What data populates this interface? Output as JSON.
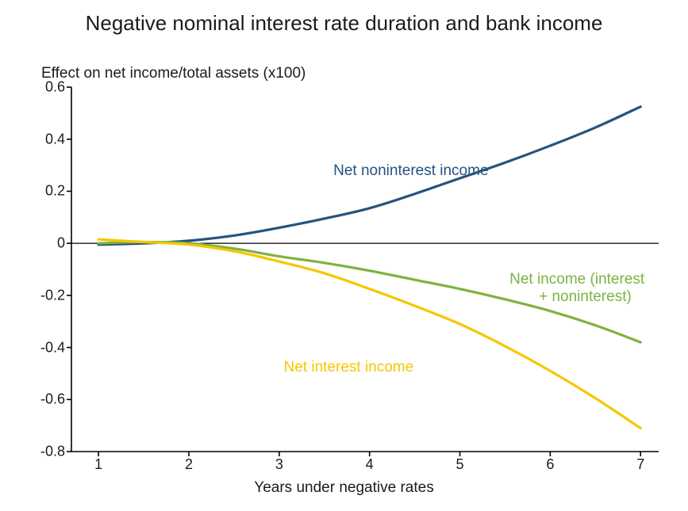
{
  "chart": {
    "type": "line",
    "title": "Negative nominal interest rate duration and bank income",
    "ylabel": "Effect on net income/total assets (x100)",
    "xlabel": "Years under negative rates",
    "background_color": "#ffffff",
    "title_fontsize": 26,
    "label_fontsize": 19,
    "tick_fontsize": 18,
    "xlim": [
      0.7,
      7.2
    ],
    "ylim": [
      -0.8,
      0.6
    ],
    "yticks": [
      0.6,
      0.4,
      0.2,
      0,
      -0.2,
      -0.4,
      -0.6,
      -0.8
    ],
    "ytick_labels": [
      "0.6",
      "0.4",
      "0.2",
      "0",
      "-0.2",
      "-0.4",
      "-0.6",
      "-0.8"
    ],
    "xticks": [
      1,
      2,
      3,
      4,
      5,
      6,
      7
    ],
    "xtick_labels": [
      "1",
      "2",
      "3",
      "4",
      "5",
      "6",
      "7"
    ],
    "zero_line_color": "#000000",
    "zero_line_width": 1.2,
    "axis_color": "#000000",
    "axis_width": 1.6,
    "tick_length": 6,
    "line_width": 3.2,
    "series": [
      {
        "name": "Net noninterest income",
        "color": "#25537e",
        "label_text": "Net noninterest income",
        "label_pos_x": 3.6,
        "label_pos_y": 0.31,
        "x": [
          1,
          1.5,
          2,
          2.5,
          3,
          3.5,
          4,
          4.5,
          5,
          5.5,
          6,
          6.5,
          7
        ],
        "y": [
          -0.005,
          0.0,
          0.01,
          0.03,
          0.06,
          0.095,
          0.135,
          0.19,
          0.25,
          0.31,
          0.375,
          0.445,
          0.525
        ]
      },
      {
        "name": "Net income (interest + noninterest)",
        "color": "#7cb342",
        "label_text": "Net income (interest\n       + noninterest)",
        "label_pos_x": 5.55,
        "label_pos_y": -0.105,
        "x": [
          1,
          1.5,
          2,
          2.5,
          3,
          3.5,
          4,
          4.5,
          5,
          5.5,
          6,
          6.5,
          7
        ],
        "y": [
          0.0,
          0.005,
          0.0,
          -0.02,
          -0.05,
          -0.075,
          -0.105,
          -0.14,
          -0.175,
          -0.215,
          -0.26,
          -0.315,
          -0.38
        ]
      },
      {
        "name": "Net interest income",
        "color": "#f7c600",
        "label_text": "Net interest income",
        "label_pos_x": 3.05,
        "label_pos_y": -0.445,
        "x": [
          1,
          1.5,
          2,
          2.5,
          3,
          3.5,
          4,
          4.5,
          5,
          5.5,
          6,
          6.5,
          7
        ],
        "y": [
          0.015,
          0.005,
          -0.005,
          -0.03,
          -0.07,
          -0.115,
          -0.175,
          -0.24,
          -0.31,
          -0.395,
          -0.49,
          -0.595,
          -0.71
        ]
      }
    ]
  }
}
